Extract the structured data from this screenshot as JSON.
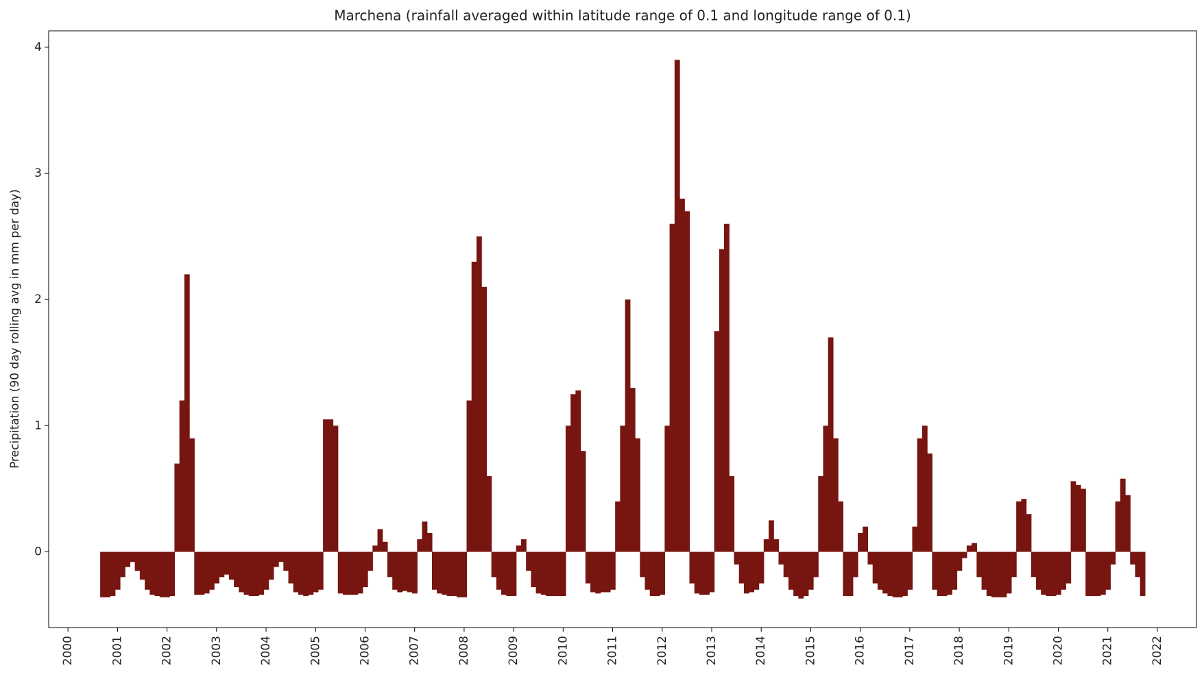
{
  "chart_data": {
    "type": "bar",
    "title": "Marchena (rainfall averaged within latitude range of 0.1 and longitude range of 0.1)",
    "y_label": "Precipitation (90 day rolling avg in mm per day)",
    "color": "#771510",
    "xlim": [
      1999.61,
      2022.79
    ],
    "ylim": [
      -0.6,
      4.13
    ],
    "xticks": [
      2000,
      2001,
      2002,
      2003,
      2004,
      2005,
      2006,
      2007,
      2008,
      2009,
      2010,
      2011,
      2012,
      2013,
      2014,
      2015,
      2016,
      2017,
      2018,
      2019,
      2020,
      2021,
      2022
    ],
    "yticks": [
      0,
      1,
      2,
      3,
      4
    ],
    "grid": false,
    "x": [
      2000.7,
      2000.8,
      2000.9,
      2001.0,
      2001.1,
      2001.2,
      2001.3,
      2001.4,
      2001.5,
      2001.6,
      2001.7,
      2001.8,
      2001.9,
      2002.0,
      2002.1,
      2002.2,
      2002.3,
      2002.4,
      2002.5,
      2002.6,
      2002.7,
      2002.8,
      2002.9,
      2003.0,
      2003.1,
      2003.2,
      2003.3,
      2003.4,
      2003.5,
      2003.6,
      2003.7,
      2003.8,
      2003.9,
      2004.0,
      2004.1,
      2004.2,
      2004.3,
      2004.4,
      2004.5,
      2004.6,
      2004.7,
      2004.8,
      2004.9,
      2005.0,
      2005.1,
      2005.2,
      2005.3,
      2005.4,
      2005.5,
      2005.6,
      2005.7,
      2005.8,
      2005.9,
      2006.0,
      2006.1,
      2006.2,
      2006.3,
      2006.4,
      2006.5,
      2006.6,
      2006.7,
      2006.8,
      2006.9,
      2007.0,
      2007.1,
      2007.2,
      2007.3,
      2007.4,
      2007.5,
      2007.6,
      2007.7,
      2007.8,
      2007.9,
      2008.0,
      2008.1,
      2008.2,
      2008.3,
      2008.4,
      2008.5,
      2008.6,
      2008.7,
      2008.8,
      2008.9,
      2009.0,
      2009.1,
      2009.2,
      2009.3,
      2009.4,
      2009.5,
      2009.6,
      2009.7,
      2009.8,
      2009.9,
      2010.0,
      2010.1,
      2010.2,
      2010.3,
      2010.4,
      2010.5,
      2010.6,
      2010.7,
      2010.8,
      2010.9,
      2011.0,
      2011.1,
      2011.2,
      2011.3,
      2011.4,
      2011.5,
      2011.6,
      2011.7,
      2011.8,
      2011.9,
      2012.0,
      2012.1,
      2012.2,
      2012.3,
      2012.4,
      2012.5,
      2012.6,
      2012.7,
      2012.8,
      2012.9,
      2013.0,
      2013.1,
      2013.2,
      2013.3,
      2013.4,
      2013.5,
      2013.6,
      2013.7,
      2013.8,
      2013.9,
      2014.0,
      2014.1,
      2014.2,
      2014.3,
      2014.4,
      2014.5,
      2014.6,
      2014.7,
      2014.8,
      2014.9,
      2015.0,
      2015.1,
      2015.2,
      2015.3,
      2015.4,
      2015.5,
      2015.6,
      2015.7,
      2015.8,
      2015.9,
      2016.0,
      2016.1,
      2016.2,
      2016.3,
      2016.4,
      2016.5,
      2016.6,
      2016.7,
      2016.8,
      2016.9,
      2017.0,
      2017.1,
      2017.2,
      2017.3,
      2017.4,
      2017.5,
      2017.6,
      2017.7,
      2017.8,
      2017.9,
      2018.0,
      2018.1,
      2018.2,
      2018.3,
      2018.4,
      2018.5,
      2018.6,
      2018.7,
      2018.8,
      2018.9,
      2019.0,
      2019.1,
      2019.2,
      2019.3,
      2019.4,
      2019.5,
      2019.6,
      2019.7,
      2019.8,
      2019.9,
      2020.0,
      2020.1,
      2020.2,
      2020.3,
      2020.4,
      2020.5,
      2020.6,
      2020.7,
      2020.8,
      2020.9,
      2021.0,
      2021.1,
      2021.2,
      2021.3,
      2021.4,
      2021.5,
      2021.6,
      2021.7
    ],
    "values": [
      -0.36,
      -0.36,
      -0.35,
      -0.3,
      -0.2,
      -0.12,
      -0.08,
      -0.15,
      -0.22,
      -0.3,
      -0.34,
      -0.35,
      -0.36,
      -0.36,
      -0.35,
      0.7,
      1.2,
      2.2,
      0.9,
      -0.34,
      -0.34,
      -0.33,
      -0.3,
      -0.25,
      -0.2,
      -0.18,
      -0.22,
      -0.28,
      -0.32,
      -0.34,
      -0.35,
      -0.35,
      -0.34,
      -0.3,
      -0.22,
      -0.12,
      -0.08,
      -0.15,
      -0.25,
      -0.32,
      -0.34,
      -0.35,
      -0.34,
      -0.32,
      -0.3,
      1.05,
      1.05,
      1.0,
      -0.33,
      -0.34,
      -0.34,
      -0.34,
      -0.33,
      -0.28,
      -0.15,
      0.05,
      0.18,
      0.08,
      -0.2,
      -0.3,
      -0.32,
      -0.31,
      -0.32,
      -0.33,
      0.1,
      0.24,
      0.15,
      -0.3,
      -0.33,
      -0.34,
      -0.35,
      -0.35,
      -0.36,
      -0.36,
      1.2,
      2.3,
      2.5,
      2.1,
      0.6,
      -0.2,
      -0.3,
      -0.34,
      -0.35,
      -0.35,
      0.05,
      0.1,
      -0.15,
      -0.28,
      -0.33,
      -0.34,
      -0.35,
      -0.35,
      -0.35,
      -0.35,
      1.0,
      1.25,
      1.28,
      0.8,
      -0.25,
      -0.32,
      -0.33,
      -0.32,
      -0.32,
      -0.3,
      0.4,
      1.0,
      2.0,
      1.3,
      0.9,
      -0.2,
      -0.3,
      -0.35,
      -0.35,
      -0.34,
      1.0,
      2.6,
      3.9,
      2.8,
      2.7,
      -0.25,
      -0.33,
      -0.34,
      -0.34,
      -0.32,
      1.75,
      2.4,
      2.6,
      0.6,
      -0.1,
      -0.25,
      -0.33,
      -0.32,
      -0.3,
      -0.25,
      0.1,
      0.25,
      0.1,
      -0.1,
      -0.2,
      -0.3,
      -0.35,
      -0.37,
      -0.35,
      -0.3,
      -0.2,
      0.6,
      1.0,
      1.7,
      0.9,
      0.4,
      -0.35,
      -0.35,
      -0.2,
      0.15,
      0.2,
      -0.1,
      -0.25,
      -0.3,
      -0.33,
      -0.35,
      -0.36,
      -0.36,
      -0.35,
      -0.3,
      0.2,
      0.9,
      1.0,
      0.78,
      -0.3,
      -0.35,
      -0.35,
      -0.34,
      -0.3,
      -0.15,
      -0.05,
      0.05,
      0.07,
      -0.2,
      -0.3,
      -0.35,
      -0.36,
      -0.36,
      -0.36,
      -0.33,
      -0.2,
      0.4,
      0.42,
      0.3,
      -0.2,
      -0.3,
      -0.34,
      -0.35,
      -0.35,
      -0.34,
      -0.3,
      -0.25,
      0.56,
      0.53,
      0.5,
      -0.35,
      -0.35,
      -0.35,
      -0.34,
      -0.3,
      -0.1,
      0.4,
      0.58,
      0.45,
      -0.1,
      -0.2,
      -0.35
    ]
  }
}
